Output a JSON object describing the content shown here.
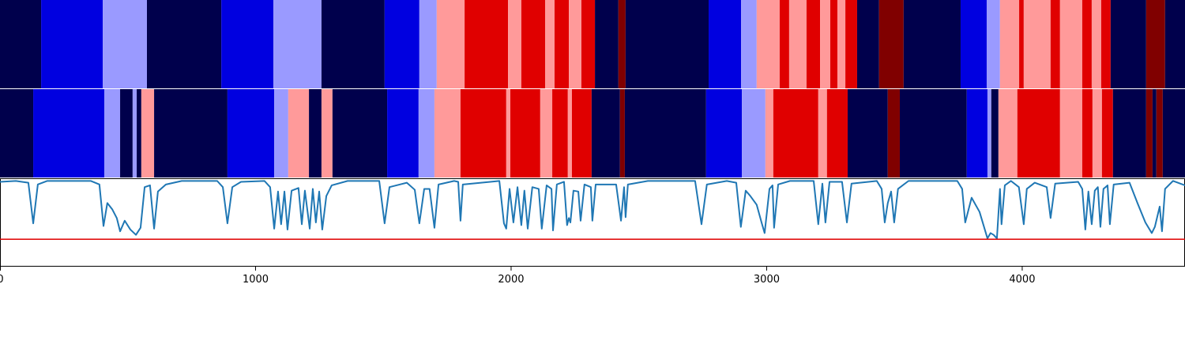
{
  "chart_data": [
    {
      "type": "heatmap",
      "levels": [
        -3,
        -2,
        -1,
        1,
        2,
        3
      ],
      "colors": [
        "#00004c",
        "#0000e0",
        "#9a9aff",
        "#ff9a9a",
        "#e00000",
        "#800000"
      ],
      "xlim": [
        0,
        4637
      ],
      "edges": [
        0,
        161,
        402,
        575,
        866,
        1070,
        1258,
        1505,
        1641,
        1709,
        1818,
        1988,
        2040,
        2133,
        2170,
        2226,
        2275,
        2328,
        2420,
        2448,
        2773,
        2900,
        2961,
        3051,
        3088,
        3156,
        3209,
        3249,
        3277,
        3308,
        3354,
        3440,
        3536,
        3759,
        3861,
        3913,
        3988,
        4006,
        4111,
        4148,
        4235,
        4272,
        4309,
        4346,
        4485,
        4559,
        4637
      ],
      "values": [
        -3,
        -2,
        -1,
        -3,
        -2,
        -1,
        -3,
        -2,
        -1,
        1,
        2,
        1,
        2,
        1,
        2,
        1,
        2,
        -3,
        3,
        -3,
        -2,
        -1,
        1,
        2,
        1,
        2,
        1,
        2,
        1,
        2,
        -3,
        3,
        -3,
        -2,
        -1,
        1,
        2,
        1,
        2,
        1,
        2,
        1,
        2,
        -3,
        3,
        -3
      ]
    },
    {
      "type": "heatmap",
      "levels": [
        -3,
        -2,
        -1,
        1,
        2,
        3
      ],
      "colors": [
        "#00004c",
        "#0000e0",
        "#9a9aff",
        "#ff9a9a",
        "#e00000",
        "#800000"
      ],
      "xlim": [
        0,
        4637
      ],
      "edges": [
        0,
        130,
        408,
        470,
        519,
        535,
        553,
        603,
        890,
        1073,
        1128,
        1209,
        1258,
        1301,
        1515,
        1638,
        1700,
        1802,
        1981,
        1997,
        2114,
        2161,
        2222,
        2238,
        2315,
        2426,
        2445,
        2763,
        2903,
        2995,
        3026,
        3202,
        3236,
        3317,
        3474,
        3521,
        3783,
        3864,
        3879,
        3907,
        3981,
        4148,
        4235,
        4275,
        4312,
        4355,
        4485,
        4510,
        4525,
        4550,
        4637
      ],
      "values": [
        -3,
        -2,
        -1,
        -3,
        -1,
        -3,
        1,
        -3,
        -2,
        -1,
        1,
        -3,
        1,
        -3,
        -2,
        -1,
        1,
        2,
        1,
        2,
        1,
        2,
        1,
        2,
        -3,
        3,
        -3,
        -2,
        -1,
        1,
        2,
        1,
        2,
        -3,
        3,
        -3,
        -2,
        -1,
        -3,
        1,
        2,
        1,
        2,
        1,
        2,
        -3,
        3,
        -3,
        3,
        -3
      ]
    },
    {
      "type": "line",
      "color": "#1f77b4",
      "hline": 0.31,
      "hline_color": "#e00000",
      "xlim": [
        0,
        4637
      ],
      "ylim": [
        0,
        1
      ],
      "xticks": [
        0,
        1000,
        2000,
        3000,
        4000
      ],
      "x": [
        0,
        62,
        111,
        130,
        148,
        185,
        355,
        389,
        405,
        420,
        439,
        457,
        470,
        488,
        510,
        532,
        550,
        566,
        587,
        603,
        618,
        649,
        711,
        850,
        872,
        890,
        909,
        943,
        1035,
        1057,
        1073,
        1088,
        1100,
        1113,
        1125,
        1141,
        1168,
        1181,
        1193,
        1212,
        1224,
        1236,
        1249,
        1261,
        1277,
        1298,
        1360,
        1484,
        1505,
        1524,
        1592,
        1623,
        1641,
        1660,
        1681,
        1700,
        1716,
        1777,
        1793,
        1802,
        1811,
        1954,
        1972,
        1981,
        1994,
        2009,
        2025,
        2040,
        2052,
        2065,
        2083,
        2108,
        2120,
        2139,
        2158,
        2164,
        2179,
        2207,
        2219,
        2226,
        2232,
        2244,
        2263,
        2272,
        2287,
        2312,
        2318,
        2331,
        2411,
        2430,
        2442,
        2448,
        2457,
        2535,
        2720,
        2745,
        2766,
        2844,
        2881,
        2899,
        2918,
        2936,
        2961,
        2980,
        2992,
        3011,
        3023,
        3029,
        3045,
        3091,
        3184,
        3202,
        3218,
        3230,
        3246,
        3295,
        3314,
        3332,
        3431,
        3450,
        3462,
        3474,
        3487,
        3499,
        3514,
        3555,
        3746,
        3765,
        3777,
        3802,
        3833,
        3864,
        3876,
        3888,
        3901,
        3913,
        3919,
        3932,
        3956,
        3987,
        4006,
        4018,
        4049,
        4096,
        4111,
        4129,
        4219,
        4235,
        4247,
        4259,
        4272,
        4284,
        4296,
        4306,
        4318,
        4334,
        4343,
        4358,
        4420,
        4451,
        4482,
        4507,
        4519,
        4538,
        4547,
        4559,
        4590,
        4637
      ],
      "values": [
        0.96,
        0.97,
        0.95,
        0.49,
        0.93,
        0.97,
        0.97,
        0.93,
        0.46,
        0.72,
        0.65,
        0.55,
        0.4,
        0.52,
        0.42,
        0.36,
        0.44,
        0.9,
        0.92,
        0.43,
        0.85,
        0.93,
        0.97,
        0.97,
        0.9,
        0.49,
        0.9,
        0.96,
        0.97,
        0.9,
        0.43,
        0.85,
        0.48,
        0.85,
        0.42,
        0.86,
        0.89,
        0.48,
        0.86,
        0.43,
        0.88,
        0.5,
        0.85,
        0.42,
        0.8,
        0.92,
        0.97,
        0.97,
        0.49,
        0.9,
        0.95,
        0.87,
        0.49,
        0.88,
        0.88,
        0.44,
        0.93,
        0.97,
        0.96,
        0.52,
        0.93,
        0.97,
        0.49,
        0.43,
        0.88,
        0.5,
        0.9,
        0.47,
        0.86,
        0.43,
        0.9,
        0.88,
        0.43,
        0.92,
        0.88,
        0.41,
        0.93,
        0.96,
        0.47,
        0.55,
        0.5,
        0.86,
        0.85,
        0.52,
        0.93,
        0.9,
        0.52,
        0.93,
        0.93,
        0.52,
        0.9,
        0.56,
        0.93,
        0.97,
        0.97,
        0.48,
        0.93,
        0.97,
        0.95,
        0.45,
        0.86,
        0.8,
        0.7,
        0.5,
        0.38,
        0.88,
        0.92,
        0.44,
        0.93,
        0.97,
        0.97,
        0.48,
        0.94,
        0.5,
        0.96,
        0.96,
        0.5,
        0.94,
        0.97,
        0.88,
        0.5,
        0.72,
        0.85,
        0.5,
        0.88,
        0.97,
        0.97,
        0.88,
        0.5,
        0.78,
        0.62,
        0.32,
        0.38,
        0.36,
        0.32,
        0.88,
        0.48,
        0.92,
        0.97,
        0.9,
        0.48,
        0.88,
        0.95,
        0.9,
        0.55,
        0.94,
        0.96,
        0.88,
        0.42,
        0.85,
        0.48,
        0.86,
        0.9,
        0.45,
        0.88,
        0.92,
        0.48,
        0.93,
        0.95,
        0.72,
        0.5,
        0.38,
        0.45,
        0.68,
        0.4,
        0.88,
        0.97,
        0.92
      ]
    }
  ]
}
